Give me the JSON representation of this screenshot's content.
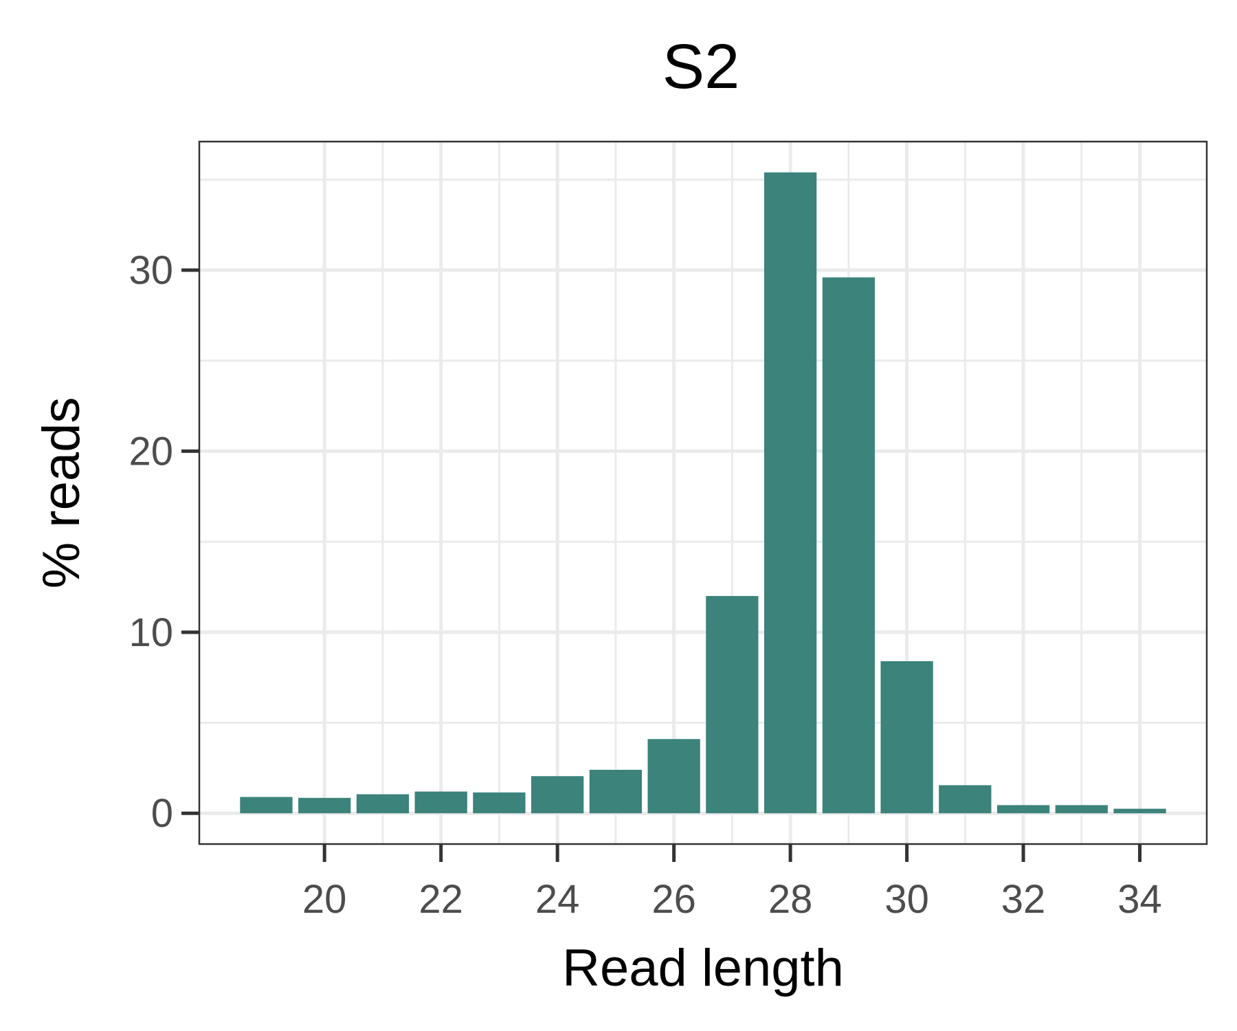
{
  "chart_data": {
    "type": "bar",
    "title": "S2",
    "xlabel": "Read length",
    "ylabel": "% reads",
    "x": [
      19,
      20,
      21,
      22,
      23,
      24,
      25,
      26,
      27,
      28,
      29,
      30,
      31,
      32,
      33,
      34
    ],
    "values": [
      0.9,
      0.85,
      1.05,
      1.2,
      1.15,
      2.05,
      2.4,
      4.1,
      12.0,
      35.4,
      29.6,
      8.4,
      1.55,
      0.45,
      0.45,
      0.25
    ],
    "xticks": [
      20,
      22,
      24,
      26,
      28,
      30,
      32,
      34
    ],
    "yticks": [
      0,
      10,
      20,
      30
    ],
    "xlim": [
      17.85,
      35.15
    ],
    "ylim": [
      -1.7,
      37.1
    ],
    "grid": true,
    "legend": "none",
    "colors": {
      "bar": "#3b837b",
      "grid": "#ebebeb",
      "panel_border": "#333333",
      "tick": "#333333"
    }
  }
}
